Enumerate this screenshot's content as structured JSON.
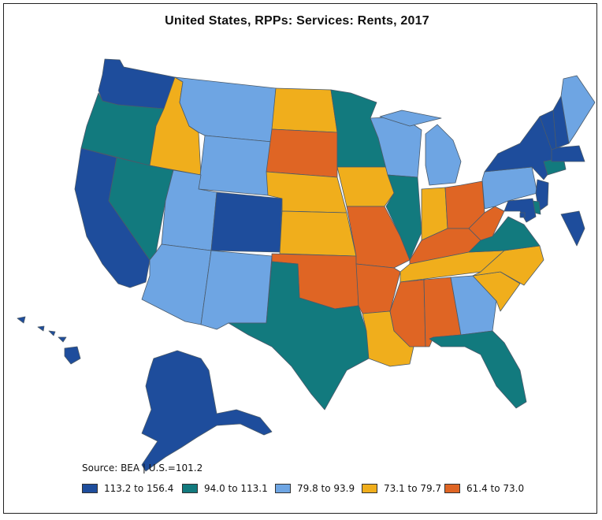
{
  "title": "United States, RPPs: Services: Rents, 2017",
  "source": "Source: BEA | U.S.=101.2",
  "colors": {
    "c1": "#1e4d9c",
    "c2": "#127a7e",
    "c3": "#6ea5e3",
    "c4": "#f0ae1c",
    "c5": "#df6524"
  },
  "legend": [
    {
      "label": "113.2 to 156.4",
      "color": "#1e4d9c"
    },
    {
      "label": "94.0 to 113.1",
      "color": "#127a7e"
    },
    {
      "label": "79.8 to 93.9",
      "color": "#6ea5e3"
    },
    {
      "label": "73.1 to 79.7",
      "color": "#f0ae1c"
    },
    {
      "label": "61.4 to 73.0",
      "color": "#df6524"
    }
  ],
  "states": {
    "WA": "c1",
    "OR": "c2",
    "CA": "c1",
    "ID": "c4",
    "NV": "c2",
    "MT": "c3",
    "WY": "c3",
    "UT": "c3",
    "AZ": "c3",
    "CO": "c1",
    "NM": "c3",
    "ND": "c4",
    "SD": "c5",
    "NE": "c4",
    "KS": "c4",
    "OK": "c5",
    "TX": "c2",
    "MN": "c2",
    "IA": "c4",
    "MO": "c5",
    "AR": "c5",
    "LA": "c4",
    "WI": "c3",
    "IL": "c2",
    "MI": "c3",
    "IN": "c4",
    "OH": "c5",
    "KY": "c5",
    "TN": "c4",
    "MS": "c5",
    "AL": "c5",
    "GA": "c3",
    "FL": "c2",
    "SC": "c4",
    "NC": "c4",
    "VA": "c2",
    "WV": "c5",
    "PA": "c3",
    "NY": "c1",
    "VT": "c1",
    "NH": "c1",
    "ME": "c3",
    "MA": "c1",
    "CT": "c2",
    "NJ": "c1",
    "DE": "c2",
    "MD": "c1",
    "DC": "c1",
    "AK": "c1",
    "HI": "c1"
  }
}
